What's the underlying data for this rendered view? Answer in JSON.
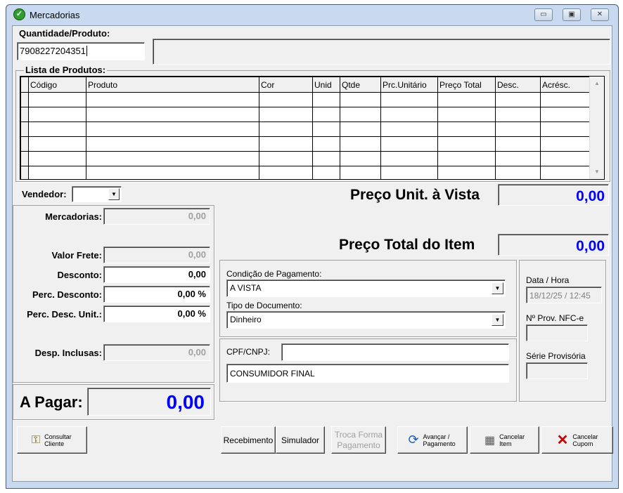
{
  "window": {
    "title": "Mercadorias",
    "minimize": "▭",
    "maximize": "▣",
    "close": "✕"
  },
  "entry": {
    "label": "Quantidade/Produto:",
    "value": "7908227204351",
    "description": ""
  },
  "products": {
    "label": "Lista de Produtos:",
    "columns": [
      "Código",
      "Produto",
      "Cor",
      "Unid",
      "Qtde",
      "Prc.Unitário",
      "Preço Total",
      "Desc.",
      "Acrésc."
    ],
    "rows": 6
  },
  "vendedor": {
    "label": "Vendedor:",
    "value": ""
  },
  "preco_unit": {
    "label": "Preço Unit. à Vista",
    "value": "0,00"
  },
  "preco_total": {
    "label": "Preço Total do Item",
    "value": "0,00"
  },
  "totals": {
    "mercadorias": {
      "label": "Mercadorias:",
      "value": "0,00"
    },
    "frete": {
      "label": "Valor Frete:",
      "value": "0,00"
    },
    "desconto": {
      "label": "Desconto:",
      "value": "0,00"
    },
    "perc_desconto": {
      "label": "Perc. Desconto:",
      "value": "0,00 %"
    },
    "perc_desc_unit": {
      "label": "Perc. Desc. Unit.:",
      "value": "0,00 %"
    },
    "desp_inclusas": {
      "label": "Desp. Inclusas:",
      "value": "0,00"
    }
  },
  "a_pagar": {
    "label": "A Pagar:",
    "value": "0,00"
  },
  "pagamento": {
    "condicao_label": "Condição de Pagamento:",
    "condicao_value": "A VISTA",
    "tipo_label": "Tipo de Documento:",
    "tipo_value": "Dinheiro"
  },
  "cliente": {
    "cpf_label": "CPF/CNPJ:",
    "cpf_value": "",
    "nome": "CONSUMIDOR FINAL"
  },
  "info": {
    "data_label": "Data / Hora",
    "data_value": "18/12/25 / 12:45",
    "nfce_label": "Nº Prov. NFC-e",
    "nfce_value": "",
    "serie_label": "Série Provisória",
    "serie_value": ""
  },
  "buttons": {
    "consultar": "Consultar Cliente",
    "recebimento": "Recebimento",
    "simulador": "Simulador",
    "troca": "Troca Forma Pagamento",
    "avancar": "Avançar / Pagamento",
    "cancelar_item": "Cancelar Item",
    "cancelar_cupom": "Cancelar Cupom"
  },
  "colors": {
    "value_blue": "#0000ff",
    "ok_green": "#2e9e2e",
    "cancel_red": "#cc0000"
  }
}
